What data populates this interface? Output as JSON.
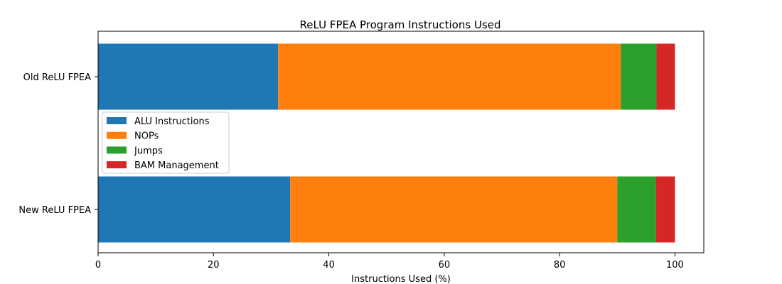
{
  "chart_data": {
    "type": "bar",
    "orientation": "horizontal",
    "stacked": true,
    "title": "ReLU FPEA Program Instructions Used",
    "xlabel": "Instructions Used (%)",
    "ylabel": "",
    "categories": [
      "Old ReLU FPEA",
      "New ReLU FPEA"
    ],
    "xlim": [
      0,
      105
    ],
    "xticks": [
      0,
      20,
      40,
      60,
      80,
      100
    ],
    "grid": false,
    "legend_position": "center-left",
    "series": [
      {
        "name": "ALU Instructions",
        "color": "#1f77b4",
        "values": [
          31.2,
          33.3
        ]
      },
      {
        "name": "NOPs",
        "color": "#ff7f0e",
        "values": [
          59.4,
          56.7
        ]
      },
      {
        "name": "Jumps",
        "color": "#2ca02c",
        "values": [
          6.2,
          6.7
        ]
      },
      {
        "name": "BAM Management",
        "color": "#d62728",
        "values": [
          3.2,
          3.3
        ]
      }
    ]
  }
}
